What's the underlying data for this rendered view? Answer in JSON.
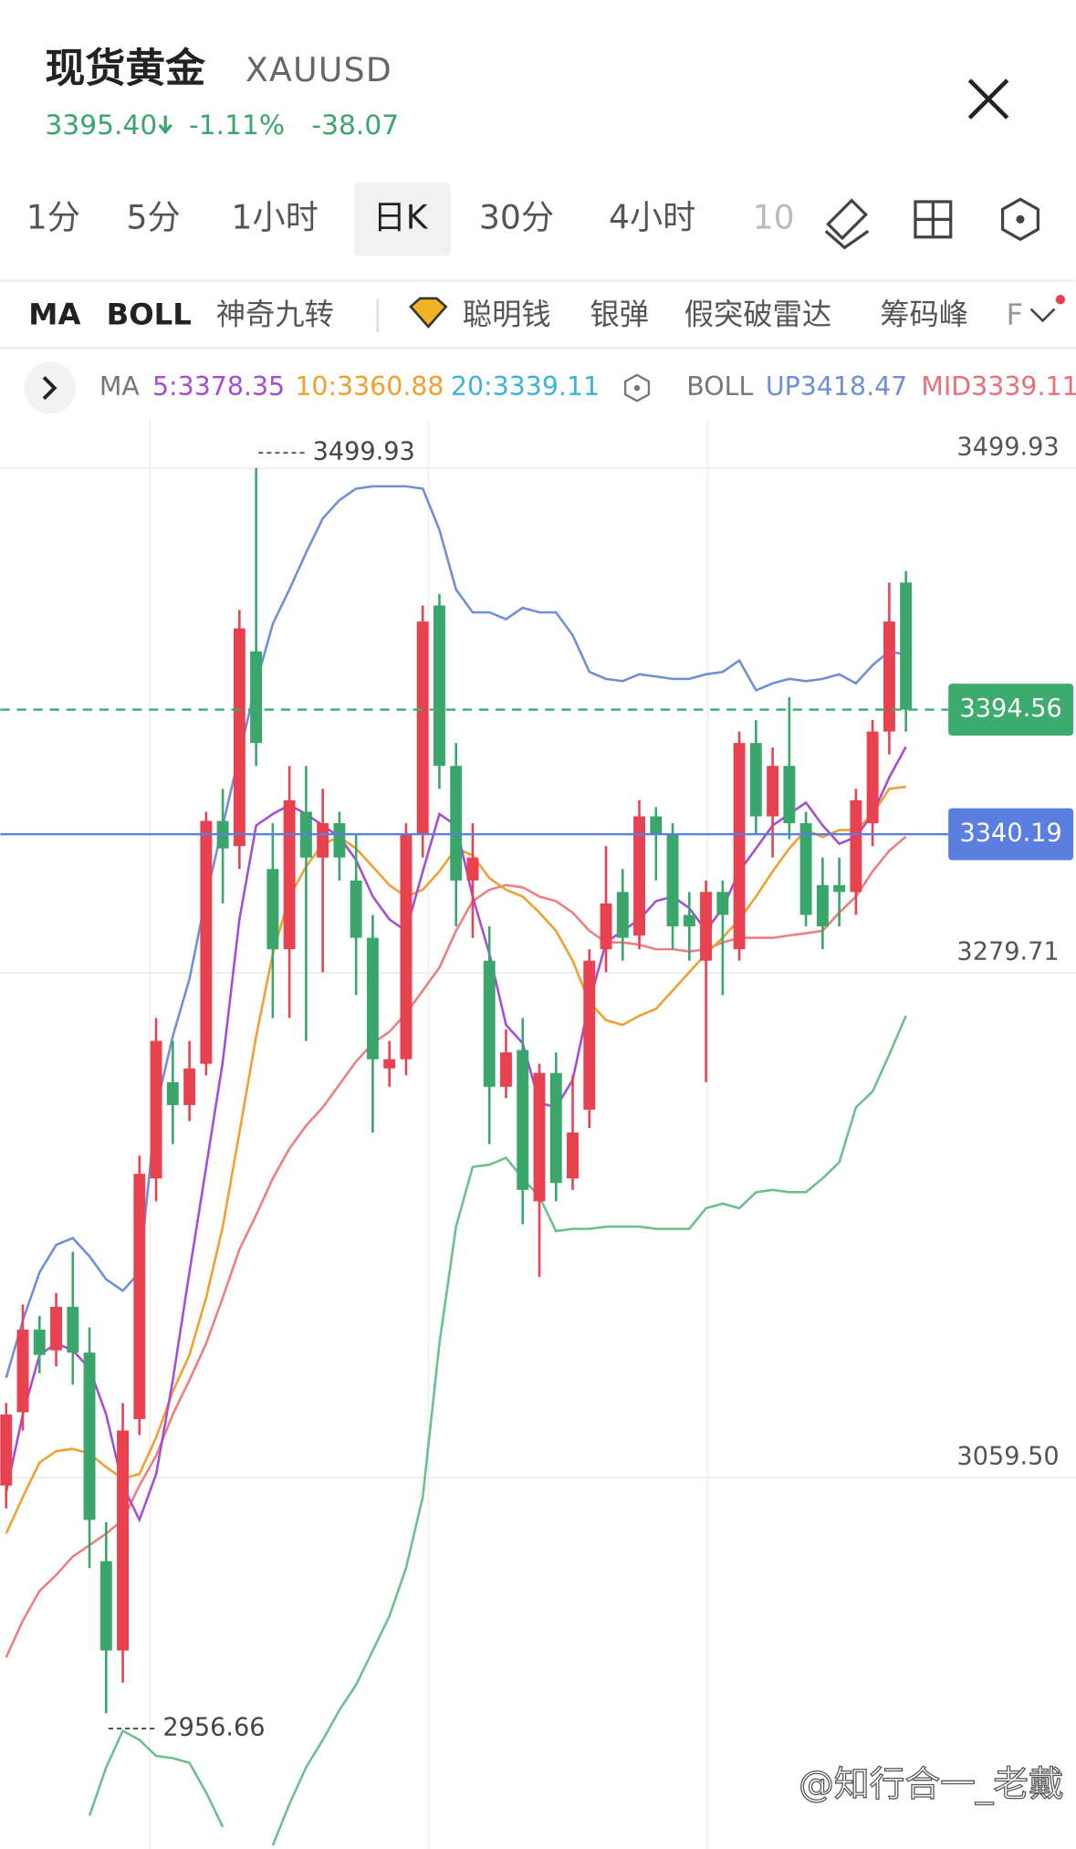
{
  "header": {
    "title": "现货黄金",
    "symbol": "XAUUSD",
    "price": "3395.40",
    "change_pct": "-1.11%",
    "change": "-38.07"
  },
  "tabs": [
    "1分",
    "5分",
    "1小时",
    "日K",
    "30分",
    "4小时",
    "10"
  ],
  "indicators": [
    "MA",
    "BOLL",
    "神奇九转",
    "聪明钱",
    "银弹",
    "假突破雷达",
    "筹码峰",
    "F"
  ],
  "legend": {
    "ma": "MA",
    "ma5": "5:3378.35",
    "ma10": "10:3360.88",
    "ma20": "20:3339.11",
    "boll": "BOLL",
    "up": "UP3418.47",
    "mid": "MID3339.11"
  },
  "chart_data": {
    "type": "candlestick",
    "up_color": "#e8414f",
    "down_color": "#3aa66b",
    "open": [
      3056,
      3088,
      3124,
      3115,
      3134,
      3114,
      3023,
      2984,
      3085,
      3190,
      3232,
      3222,
      3240,
      3346,
      3335,
      3420,
      3325,
      3290,
      3350,
      3330,
      3345,
      3320,
      3295,
      3238,
      3242,
      3340,
      3440,
      3370,
      3320,
      3285,
      3230,
      3246,
      3180,
      3236,
      3190,
      3220,
      3290,
      3315,
      3296,
      3348,
      3340,
      3305,
      3285,
      3315,
      3290,
      3380,
      3348,
      3370,
      3345,
      3318,
      3318,
      3315,
      3345,
      3385,
      3450
    ],
    "high": [
      3092,
      3135,
      3130,
      3140,
      3158,
      3125,
      3040,
      3092,
      3200,
      3260,
      3250,
      3250,
      3350,
      3360,
      3438,
      3499.93,
      3345,
      3370,
      3370,
      3360,
      3350,
      3340,
      3305,
      3250,
      3345,
      3440,
      3445,
      3380,
      3345,
      3300,
      3255,
      3260,
      3240,
      3245,
      3235,
      3290,
      3335,
      3325,
      3355,
      3352,
      3345,
      3315,
      3320,
      3320,
      3385,
      3390,
      3378,
      3400,
      3350,
      3330,
      3330,
      3360,
      3390,
      3450,
      3455
    ],
    "low": [
      3046,
      3080,
      3105,
      3108,
      3100,
      3020,
      2956.66,
      2970,
      3078,
      3180,
      3205,
      3215,
      3235,
      3310,
      3325,
      3370,
      3260,
      3260,
      3250,
      3280,
      3320,
      3270,
      3210,
      3230,
      3235,
      3330,
      3360,
      3300,
      3295,
      3205,
      3225,
      3170,
      3147,
      3180,
      3185,
      3212,
      3280,
      3285,
      3290,
      3320,
      3290,
      3285,
      3232,
      3270,
      3285,
      3340,
      3330,
      3338,
      3300,
      3290,
      3300,
      3305,
      3335,
      3375,
      3385
    ],
    "close": [
      3087,
      3124,
      3113,
      3134,
      3114,
      3041,
      2984,
      3080,
      3192,
      3250,
      3222,
      3238,
      3346,
      3334,
      3430,
      3380,
      3290,
      3355,
      3330,
      3345,
      3330,
      3295,
      3242,
      3242,
      3340,
      3433,
      3370,
      3320,
      3330,
      3230,
      3245,
      3185,
      3236,
      3188,
      3210,
      3285,
      3310,
      3295,
      3348,
      3340,
      3300,
      3300,
      3315,
      3305,
      3380,
      3348,
      3370,
      3345,
      3305,
      3300,
      3315,
      3355,
      3385,
      3433,
      3394.56
    ],
    "series": [
      {
        "color": "#6f8fd8",
        "values": [
          3103,
          3128,
          3149,
          3161,
          3164,
          3156,
          3146,
          3141,
          3149,
          3221,
          3252,
          3277,
          3313,
          3344,
          3375,
          3406,
          3432,
          3447,
          3463,
          3478,
          3486,
          3491,
          3492,
          3492,
          3492,
          3491,
          3473,
          3447,
          3437,
          3437,
          3434,
          3439,
          3437,
          3437,
          3427,
          3411,
          3408,
          3407,
          3410,
          3409,
          3408,
          3408,
          3410,
          3411,
          3416,
          3403,
          3406,
          3408,
          3407,
          3408,
          3410,
          3406,
          3414,
          3420,
          3418.47
        ]
      },
      {
        "color": "#ec7f80",
        "values": [
          2981,
          2997,
          3010,
          3017,
          3025,
          3030,
          3035,
          3041,
          3056,
          3069,
          3087,
          3102,
          3118,
          3138,
          3159,
          3174,
          3190,
          3203,
          3213,
          3221,
          3231,
          3241,
          3249,
          3254,
          3262,
          3272,
          3282,
          3298,
          3311,
          3316,
          3318,
          3317,
          3313,
          3311,
          3306,
          3298,
          3293,
          3293,
          3292,
          3290,
          3290,
          3289,
          3290,
          3293,
          3295,
          3295,
          3295,
          3296,
          3297,
          3298,
          3306,
          3313,
          3324,
          3333,
          3339.11
        ]
      },
      {
        "color": "#6cc08e",
        "values": [
          null,
          null,
          null,
          null,
          null,
          2912,
          2933,
          2949,
          2945,
          2938,
          2937,
          2935,
          2922,
          2907,
          null,
          null,
          2899,
          2917,
          2933,
          2945,
          2958,
          2969,
          2984,
          2999,
          3020,
          3051,
          3118,
          3169,
          3195,
          3196,
          3199,
          3190,
          3182,
          3167,
          3168,
          3168,
          3169,
          3169,
          3169,
          3168,
          3168,
          3168,
          3177,
          3179,
          3177,
          3184,
          3185,
          3184,
          3184,
          3190,
          3197,
          3221,
          3228,
          3244,
          3261
        ]
      },
      {
        "color": "#f0a030",
        "values": [
          3035,
          3051,
          3066,
          3071,
          3072,
          3070,
          3064,
          3059,
          3061,
          3077,
          3097,
          3113,
          3138,
          3169,
          3210,
          3252,
          3288,
          3313,
          3326,
          3336,
          3339,
          3334,
          3326,
          3318,
          3313,
          3316,
          3324,
          3334,
          3331,
          3321,
          3316,
          3313,
          3306,
          3298,
          3285,
          3267,
          3259,
          3257,
          3261,
          3264,
          3272,
          3280,
          3288,
          3295,
          3303,
          3313,
          3324,
          3334,
          3342,
          3339,
          3342,
          3342,
          3349,
          3360,
          3360.88
        ]
      },
      {
        "color": "#a64dd6",
        "values": [
          3053,
          3087,
          3113,
          3118,
          3115,
          3107,
          3087,
          3056,
          3041,
          3061,
          3102,
          3149,
          3195,
          3241,
          3303,
          3344,
          3349,
          3353,
          3349,
          3344,
          3339,
          3329,
          3313,
          3303,
          3298,
          3324,
          3349,
          3344,
          3313,
          3288,
          3257,
          3249,
          3223,
          3221,
          3233,
          3267,
          3293,
          3298,
          3303,
          3311,
          3313,
          3308,
          3298,
          3308,
          3324,
          3334,
          3344,
          3349,
          3354,
          3344,
          3336,
          3339,
          3349,
          3365,
          3378.35
        ]
      }
    ],
    "ylim": [
      2897.4,
      3521.54
    ],
    "yticks": [
      3499.93,
      3279.71,
      {
        "value": 3059.5,
        "label": "3059.50"
      }
    ],
    "grid": true,
    "high_marker": 3499.93,
    "low_marker": 2956.66,
    "current_price": {
      "value": 3394.56,
      "color": "#3daa6e"
    },
    "price_line": {
      "value": 3340.19,
      "color": "#5b7fe0"
    }
  },
  "watermark": "@知行合一_老戴"
}
